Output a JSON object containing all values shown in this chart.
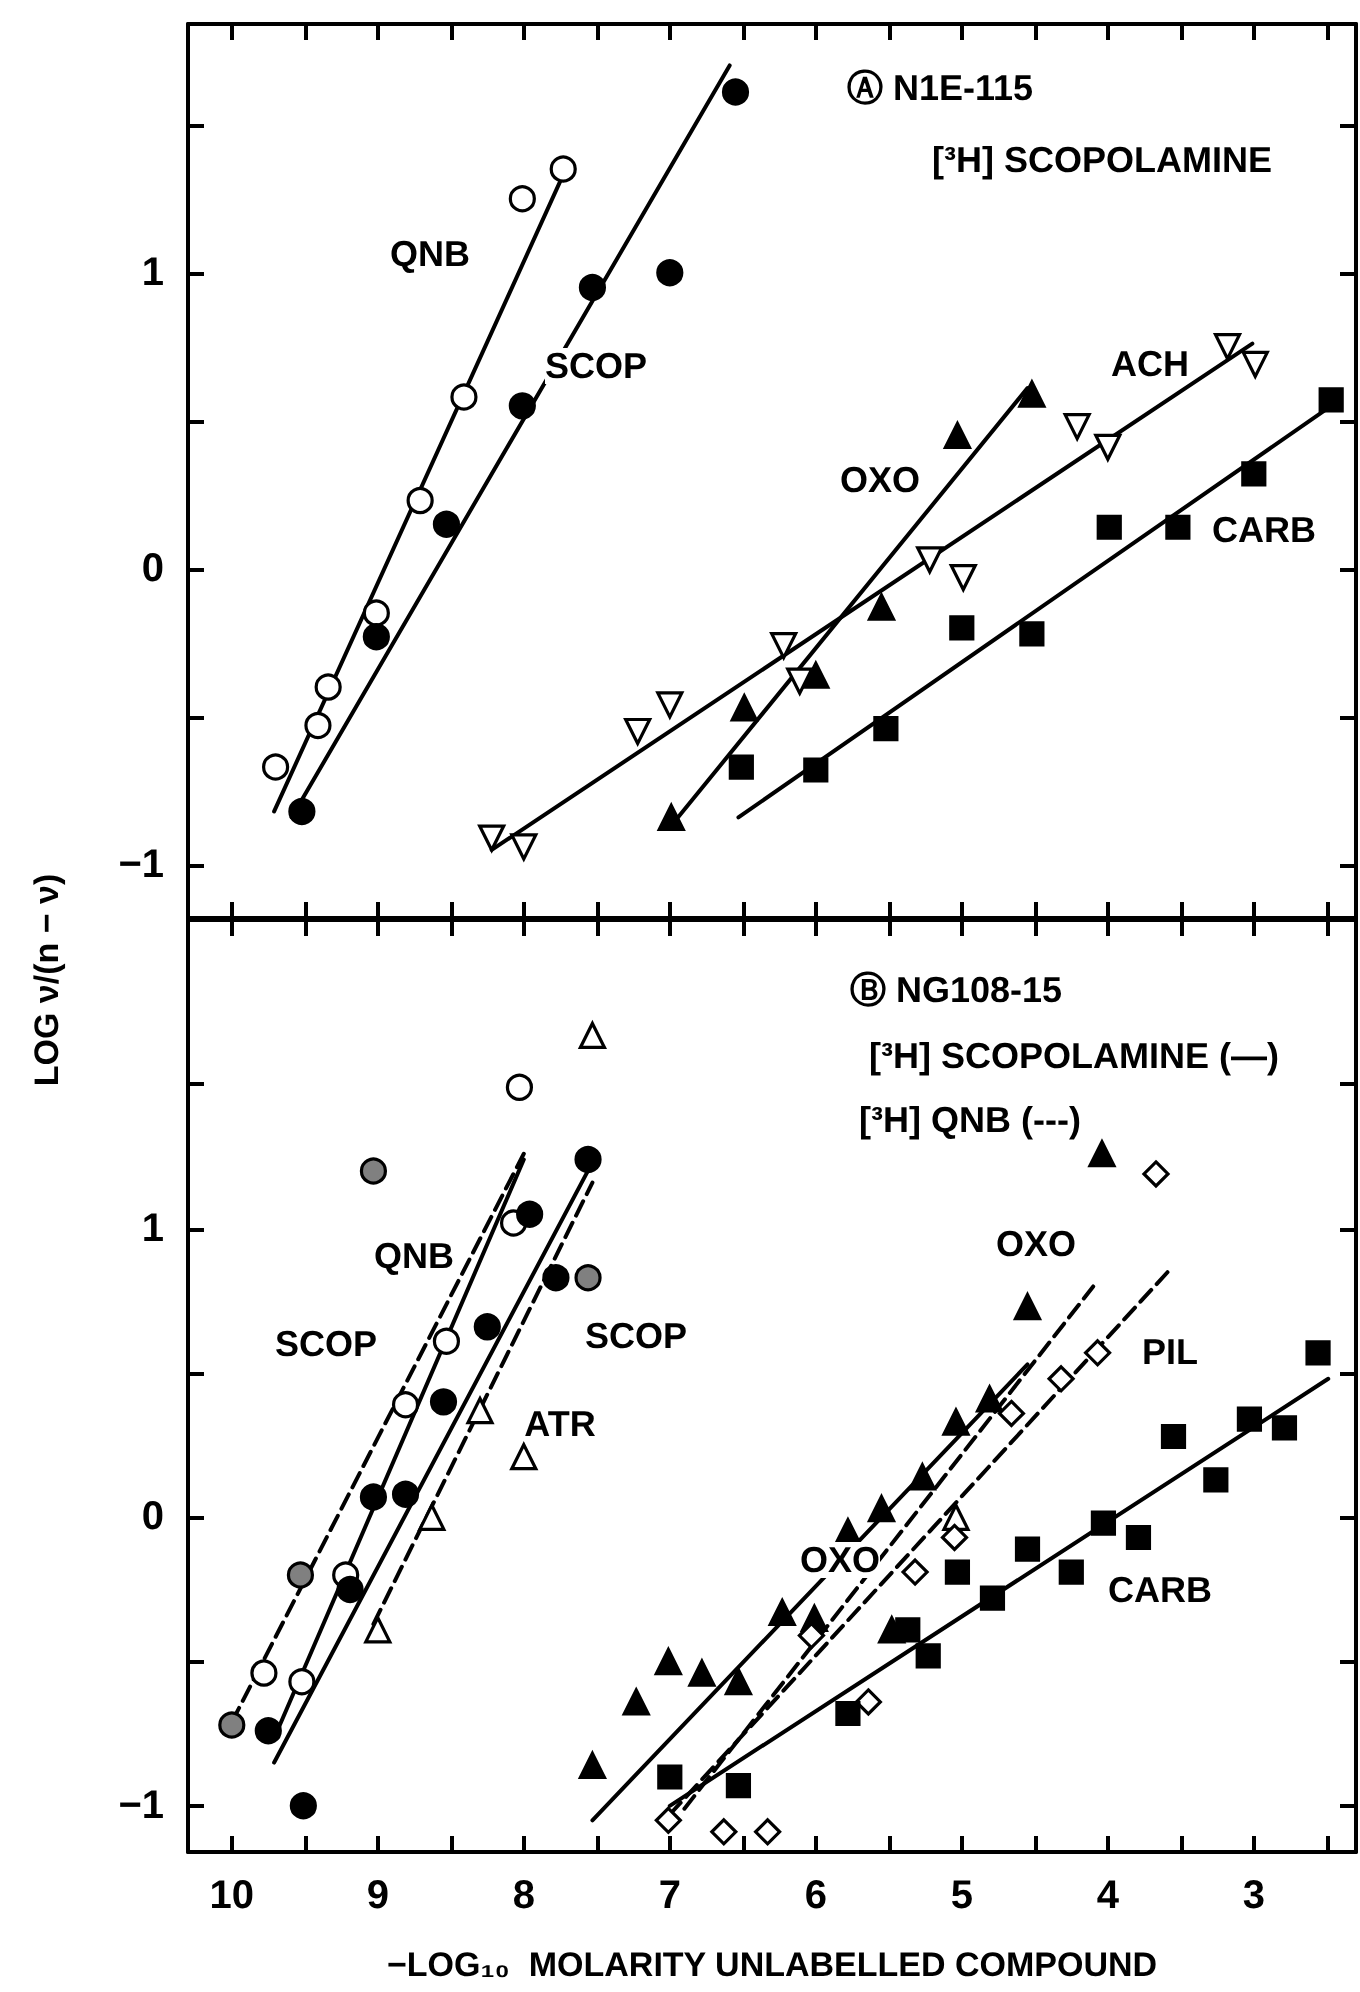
{
  "chart_data": [
    {
      "type": "scatter",
      "ylabel": "LOG ν/(n − ν)",
      "xlim": [
        10.3,
        2.3
      ],
      "ylim": [
        -1.18,
        1.84
      ],
      "xticks": [
        10,
        {
          "value": 9.5,
          "label": null
        },
        9,
        {
          "value": 8.5,
          "label": null
        },
        8,
        {
          "value": 7.5,
          "label": null
        },
        7,
        {
          "value": 6.5,
          "label": null
        },
        6,
        {
          "value": 5.5,
          "label": null
        },
        5,
        {
          "value": 4.5,
          "label": null
        },
        4,
        {
          "value": 3.5,
          "label": null
        },
        3,
        {
          "value": 2.5,
          "label": null
        }
      ],
      "yticks": [
        -1,
        {
          "value": -0.5,
          "label": null
        },
        0,
        {
          "value": 0.5,
          "label": null
        },
        1,
        {
          "value": 1.5,
          "label": null
        }
      ],
      "tick_labels": "y",
      "grid": false,
      "annotations": [
        "Ⓐ N1E-115",
        "[³H] SCOPOLAMINE",
        "QNB",
        "SCOP",
        "OXO",
        "ACH",
        "CARB"
      ],
      "series": [
        {
          "type": "scatter",
          "marker": "circle",
          "color": "#ffffff",
          "x": [
            9.7,
            9.41,
            9.34,
            9.01,
            8.71,
            8.41,
            8.01,
            7.73
          ],
          "values": [
            -0.67,
            -0.53,
            -0.4,
            -0.15,
            0.23,
            0.58,
            1.25,
            1.35
          ]
        },
        {
          "type": "line",
          "marker": "none",
          "line_style": "solid",
          "color": "#000000",
          "x": [
            9.71,
            7.74
          ],
          "values": [
            -0.82,
            1.32
          ]
        },
        {
          "type": "scatter",
          "marker": "circle",
          "color": "#000000",
          "x": [
            9.52,
            9.01,
            8.53,
            8.01,
            7.53,
            7.0,
            6.55
          ],
          "values": [
            -0.82,
            -0.23,
            0.15,
            0.55,
            0.95,
            1.0,
            1.61
          ]
        },
        {
          "type": "line",
          "marker": "none",
          "line_style": "solid",
          "color": "#000000",
          "x": [
            9.59,
            6.59
          ],
          "values": [
            -0.84,
            1.7
          ]
        },
        {
          "type": "scatter",
          "marker": "triangle-down",
          "color": "#ffffff",
          "x": [
            8.22,
            8.0,
            7.22,
            7.0,
            6.22,
            6.11,
            5.22,
            4.99,
            4.21,
            4.0,
            3.18,
            2.99
          ],
          "values": [
            -0.91,
            -0.94,
            -0.55,
            -0.46,
            -0.26,
            -0.38,
            0.03,
            -0.03,
            0.48,
            0.41,
            0.75,
            0.69
          ]
        },
        {
          "type": "line",
          "marker": "none",
          "line_style": "solid",
          "color": "#000000",
          "x": [
            8.22,
            3.01
          ],
          "values": [
            -0.95,
            0.76
          ]
        },
        {
          "type": "scatter",
          "marker": "triangle",
          "color": "#000000",
          "x": [
            6.99,
            6.49,
            6.0,
            5.55,
            5.03,
            4.52
          ],
          "values": [
            -0.84,
            -0.47,
            -0.36,
            -0.13,
            0.45,
            0.59
          ]
        },
        {
          "type": "line",
          "marker": "none",
          "line_style": "solid",
          "color": "#000000",
          "x": [
            6.96,
            4.55
          ],
          "values": [
            -0.85,
            0.61
          ]
        },
        {
          "type": "scatter",
          "marker": "square",
          "color": "#000000",
          "x": [
            6.51,
            6.0,
            5.52,
            5.0,
            4.52,
            3.99,
            3.52,
            3.0,
            2.47
          ],
          "values": [
            -0.67,
            -0.68,
            -0.54,
            -0.2,
            -0.22,
            0.14,
            0.14,
            0.32,
            0.57
          ]
        },
        {
          "type": "line",
          "marker": "none",
          "line_style": "solid",
          "color": "#000000",
          "x": [
            6.53,
            2.47
          ],
          "values": [
            -0.84,
            0.55
          ]
        }
      ]
    },
    {
      "type": "scatter",
      "xlabel": "−LOG₁₀  MOLARITY UNLABELLED COMPOUND",
      "xlim": [
        10.3,
        2.3
      ],
      "ylim": [
        -1.16,
        2.07
      ],
      "xticks": [
        10,
        {
          "value": 9.5,
          "label": null
        },
        9,
        {
          "value": 8.5,
          "label": null
        },
        8,
        {
          "value": 7.5,
          "label": null
        },
        7,
        {
          "value": 6.5,
          "label": null
        },
        6,
        {
          "value": 5.5,
          "label": null
        },
        5,
        {
          "value": 4.5,
          "label": null
        },
        4,
        {
          "value": 3.5,
          "label": null
        },
        3,
        {
          "value": 2.5,
          "label": null
        }
      ],
      "yticks": [
        -1,
        {
          "value": -0.5,
          "label": null
        },
        0,
        {
          "value": 0.5,
          "label": null
        },
        1,
        {
          "value": 1.5,
          "label": null
        }
      ],
      "grid": false,
      "annotations": [
        "Ⓑ NG108-15",
        "[³H] SCOPOLAMINE (—)",
        "[³H] QNB (---)",
        "QNB",
        "SCOP",
        "SCOP",
        "ATR",
        "OXO",
        "OXO",
        "PIL",
        "CARB"
      ],
      "series": [
        {
          "type": "scatter",
          "marker": "circle",
          "color": "#ffffff",
          "x": [
            9.78,
            9.52,
            9.22,
            8.81,
            8.53,
            8.07,
            8.03
          ],
          "values": [
            -0.54,
            -0.57,
            -0.2,
            0.39,
            0.61,
            1.02,
            1.49
          ]
        },
        {
          "type": "scatter",
          "marker": "circle",
          "color": "#808080",
          "x": [
            10.0,
            9.53,
            9.03,
            7.56
          ],
          "values": [
            -0.72,
            -0.2,
            1.2,
            0.83
          ]
        },
        {
          "type": "scatter",
          "marker": "circle",
          "color": "#000000",
          "x": [
            9.75,
            9.51,
            9.19,
            9.03,
            8.81,
            8.55,
            8.25,
            7.96,
            7.78,
            7.56
          ],
          "values": [
            -0.74,
            -1.0,
            -0.25,
            0.07,
            0.08,
            0.4,
            0.66,
            1.05,
            0.83,
            1.24
          ]
        },
        {
          "type": "scatter",
          "marker": "triangle",
          "color": "#ffffff",
          "x": [
            9.0,
            8.63,
            8.3,
            8.0,
            7.53,
            5.04
          ],
          "values": [
            -0.39,
            0.0,
            0.37,
            0.21,
            1.67,
            0.0
          ]
        },
        {
          "type": "scatter",
          "marker": "triangle",
          "color": "#000000",
          "x": [
            7.53,
            7.23,
            7.01,
            6.78,
            6.53,
            6.23,
            6.01,
            5.78,
            5.55,
            5.48,
            5.27,
            5.04,
            4.81,
            4.55,
            4.04
          ],
          "values": [
            -0.86,
            -0.64,
            -0.5,
            -0.54,
            -0.57,
            -0.33,
            -0.35,
            -0.05,
            0.03,
            -0.39,
            0.14,
            0.33,
            0.41,
            0.73,
            1.26
          ]
        },
        {
          "type": "scatter",
          "marker": "diamond",
          "color": "#ffffff",
          "x": [
            7.01,
            6.63,
            6.33,
            6.03,
            5.64,
            5.32,
            5.05,
            4.66,
            4.32,
            4.07,
            3.67
          ],
          "values": [
            -1.05,
            -1.09,
            -1.09,
            -0.41,
            -0.64,
            -0.19,
            -0.07,
            0.36,
            0.48,
            0.57,
            1.19
          ]
        },
        {
          "type": "scatter",
          "marker": "square",
          "color": "#000000",
          "x": [
            7.0,
            6.53,
            5.78,
            5.37,
            5.23,
            5.03,
            4.79,
            4.55,
            4.25,
            4.03,
            3.79,
            3.55,
            3.26,
            3.03,
            2.79,
            2.56
          ],
          "values": [
            -0.9,
            -0.93,
            -0.68,
            -0.39,
            -0.48,
            -0.19,
            -0.28,
            -0.11,
            -0.19,
            -0.02,
            -0.07,
            0.28,
            0.13,
            0.34,
            0.31,
            0.57
          ]
        },
        {
          "type": "line",
          "marker": "none",
          "line_style": "dashed",
          "color": "#000000",
          "x": [
            10.0,
            8.0
          ],
          "values": [
            -0.71,
            1.26
          ]
        },
        {
          "type": "line",
          "marker": "none",
          "line_style": "solid",
          "color": "#000000",
          "x": [
            9.68,
            8.0
          ],
          "values": [
            -0.73,
            1.24
          ]
        },
        {
          "type": "line",
          "marker": "none",
          "line_style": "solid",
          "color": "#000000",
          "x": [
            9.71,
            7.53
          ],
          "values": [
            -0.85,
            1.23
          ]
        },
        {
          "type": "line",
          "marker": "none",
          "line_style": "dashed",
          "color": "#000000",
          "x": [
            9.03,
            7.53
          ],
          "values": [
            -0.37,
            1.16
          ]
        },
        {
          "type": "line",
          "marker": "none",
          "line_style": "solid",
          "color": "#000000",
          "x": [
            7.53,
            4.55
          ],
          "values": [
            -1.05,
            0.53
          ]
        },
        {
          "type": "line",
          "marker": "none",
          "line_style": "dashed",
          "color": "#000000",
          "x": [
            6.9,
            4.1
          ],
          "values": [
            -1.01,
            0.8
          ]
        },
        {
          "type": "line",
          "marker": "none",
          "line_style": "dashed",
          "color": "#000000",
          "x": [
            7.0,
            3.59
          ],
          "values": [
            -1.03,
            0.85
          ]
        },
        {
          "type": "line",
          "marker": "none",
          "line_style": "solid",
          "color": "#000000",
          "x": [
            7.0,
            2.49
          ],
          "values": [
            -1.0,
            0.48
          ]
        }
      ]
    }
  ]
}
